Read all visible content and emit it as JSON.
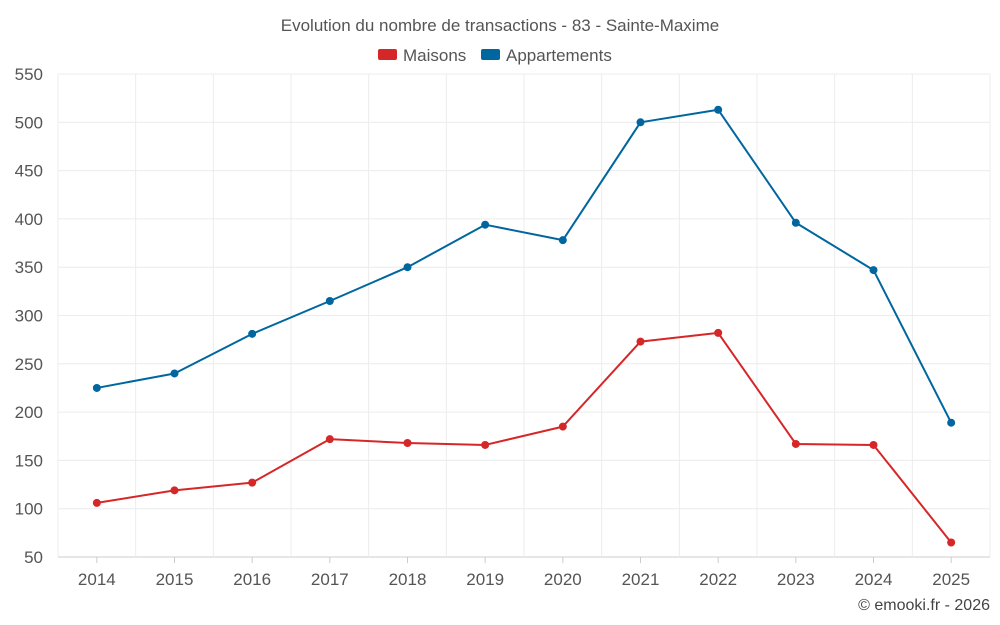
{
  "chart_data": {
    "type": "line",
    "title": "Evolution du nombre de transactions - 83 - Sainte-Maxime",
    "categories": [
      "2014",
      "2015",
      "2016",
      "2017",
      "2018",
      "2019",
      "2020",
      "2021",
      "2022",
      "2023",
      "2024",
      "2025"
    ],
    "series": [
      {
        "name": "Maisons",
        "color": "#d62728",
        "values": [
          106,
          119,
          127,
          172,
          168,
          166,
          185,
          273,
          282,
          167,
          166,
          65
        ]
      },
      {
        "name": "Appartements",
        "color": "#0066a0",
        "values": [
          225,
          240,
          281,
          315,
          350,
          394,
          378,
          500,
          513,
          396,
          347,
          189
        ]
      }
    ],
    "y_ticks": [
      50,
      100,
      150,
      200,
      250,
      300,
      350,
      400,
      450,
      500,
      550
    ],
    "ylim": [
      50,
      550
    ],
    "xlabel": "",
    "ylabel": "",
    "grid": true,
    "legend_position": "top-center"
  },
  "credit": "© emooki.fr - 2026"
}
